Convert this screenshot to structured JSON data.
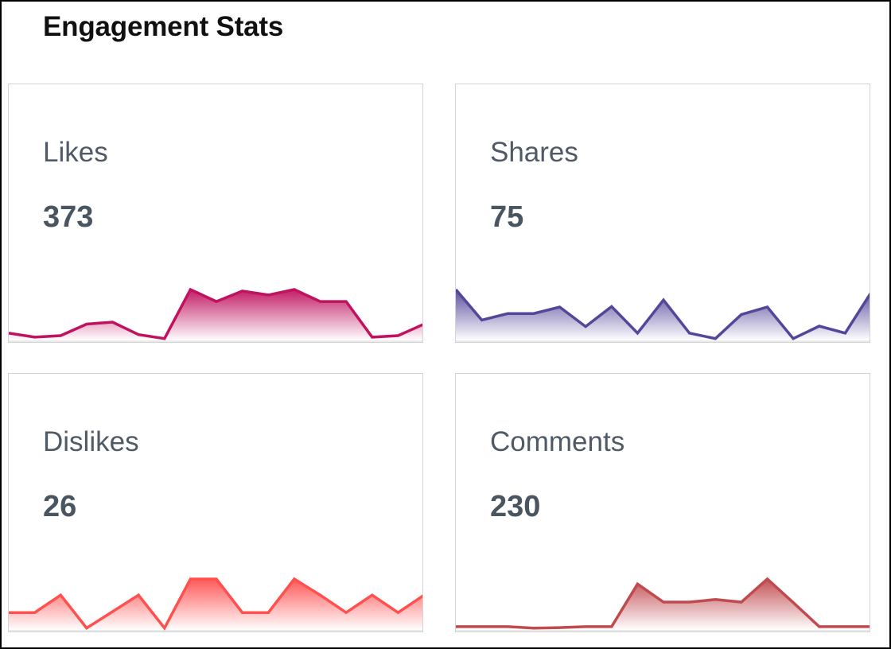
{
  "widget": {
    "title": "Engagement Stats"
  },
  "cards": [
    {
      "key": "likes",
      "label": "Likes",
      "value": "373",
      "color": "#c0125f"
    },
    {
      "key": "shares",
      "label": "Shares",
      "value": "75",
      "color": "#53479a"
    },
    {
      "key": "dislikes",
      "label": "Dislikes",
      "value": "26",
      "color": "#ff5050"
    },
    {
      "key": "comments",
      "label": "Comments",
      "value": "230",
      "color": "#c04a4e"
    }
  ],
  "chart_data": [
    {
      "type": "area",
      "title": "Likes",
      "x": [
        1,
        2,
        3,
        4,
        5,
        6,
        7,
        8,
        9,
        10,
        11,
        12,
        13,
        14,
        15,
        16,
        17
      ],
      "values": [
        13,
        5,
        8,
        31,
        35,
        10,
        2,
        100,
        76,
        97,
        89,
        100,
        76,
        76,
        5,
        8,
        31
      ],
      "ylim": [
        0,
        100
      ],
      "color": "#c0125f",
      "grid": false
    },
    {
      "type": "area",
      "title": "Shares",
      "x": [
        1,
        2,
        3,
        4,
        5,
        6,
        7,
        8,
        9,
        10,
        11,
        12,
        13,
        14,
        15,
        16,
        17
      ],
      "values": [
        100,
        39,
        52,
        52,
        65,
        26,
        66,
        13,
        79,
        13,
        2,
        50,
        65,
        2,
        27,
        13,
        94
      ],
      "ylim": [
        0,
        100
      ],
      "color": "#53479a",
      "grid": false
    },
    {
      "type": "area",
      "title": "Dislikes",
      "x": [
        1,
        2,
        3,
        4,
        5,
        6,
        7,
        8,
        9,
        10,
        11,
        12,
        13,
        14,
        15,
        16,
        17
      ],
      "values": [
        33,
        33,
        68,
        2,
        35,
        68,
        2,
        100,
        100,
        33,
        33,
        100,
        68,
        33,
        68,
        33,
        68
      ],
      "ylim": [
        0,
        100
      ],
      "color": "#ff5050",
      "grid": false
    },
    {
      "type": "area",
      "title": "Comments",
      "x": [
        1,
        2,
        3,
        4,
        5,
        6,
        7,
        8,
        9,
        10,
        11,
        12,
        13,
        14,
        15,
        16,
        17
      ],
      "values": [
        5,
        5,
        5,
        2,
        3,
        5,
        5,
        90,
        54,
        54,
        59,
        54,
        100,
        53,
        5,
        5,
        5
      ],
      "ylim": [
        0,
        100
      ],
      "color": "#c04a4e",
      "grid": false
    }
  ]
}
